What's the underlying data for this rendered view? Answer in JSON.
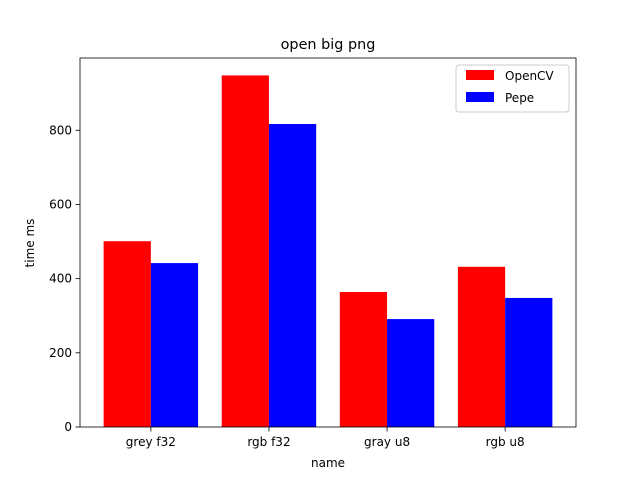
{
  "chart_data": {
    "type": "bar",
    "title": "open big png",
    "xlabel": "name",
    "ylabel": "time ms",
    "categories": [
      "grey f32",
      "rgb f32",
      "gray u8",
      "rgb u8"
    ],
    "series": [
      {
        "name": "OpenCV",
        "color": "#ff0000",
        "values": [
          501,
          948,
          364,
          432
        ]
      },
      {
        "name": "Pepe",
        "color": "#0000ff",
        "values": [
          442,
          817,
          291,
          348
        ]
      }
    ],
    "ylim": [
      0,
      995
    ],
    "yticks": [
      0,
      200,
      400,
      600,
      800
    ],
    "legend_position": "top-right",
    "grid": false
  }
}
